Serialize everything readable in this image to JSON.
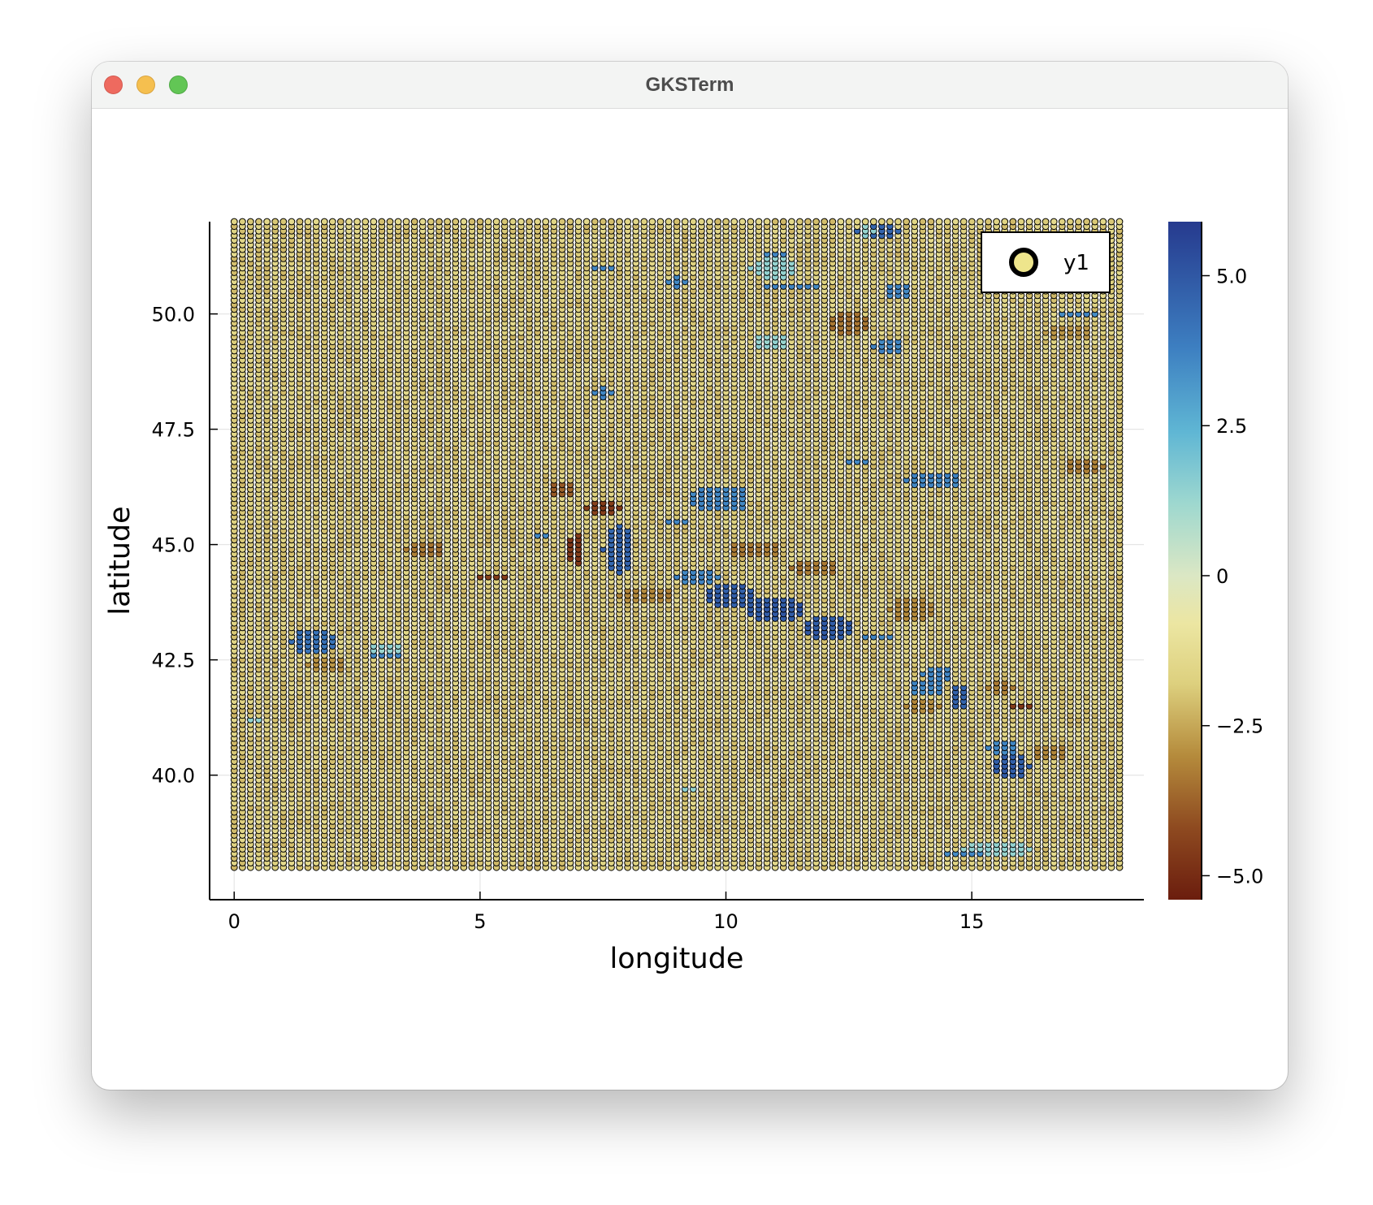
{
  "window": {
    "title": "GKSTerm"
  },
  "chart_data": {
    "type": "scatter",
    "title": "",
    "xlabel": "longitude",
    "ylabel": "latitude",
    "xlim": [
      -0.5,
      18.5
    ],
    "ylim": [
      37.3,
      52.0
    ],
    "grid": true,
    "grid_spacing": {
      "lon": 0.1667,
      "lat": 0.1
    },
    "extent": {
      "lon": [
        0.0,
        18.0
      ],
      "lat": [
        38.0,
        52.0
      ]
    },
    "background_value": -1.8,
    "xticks": [
      {
        "value": 0,
        "label": "0"
      },
      {
        "value": 5,
        "label": "5"
      },
      {
        "value": 10,
        "label": "10"
      },
      {
        "value": 15,
        "label": "15"
      }
    ],
    "yticks": [
      {
        "value": 40.0,
        "label": "40.0"
      },
      {
        "value": 42.5,
        "label": "42.5"
      },
      {
        "value": 45.0,
        "label": "45.0"
      },
      {
        "value": 47.5,
        "label": "47.5"
      },
      {
        "value": 50.0,
        "label": "50.0"
      }
    ],
    "legend": {
      "position": "top-right",
      "entries": [
        {
          "label": "y1",
          "color": "#eee58c"
        }
      ]
    },
    "colorbar": {
      "range": [
        -5.4,
        5.9
      ],
      "ticks": [
        {
          "value": 5.0,
          "label": "5.0"
        },
        {
          "value": 2.5,
          "label": "2.5"
        },
        {
          "value": 0,
          "label": "0"
        },
        {
          "value": -2.5,
          "label": "−2.5"
        },
        {
          "value": -5.0,
          "label": "−5.0"
        }
      ],
      "stops": [
        {
          "value": -5.4,
          "color": "#6b1d0e"
        },
        {
          "value": -4.2,
          "color": "#8e4a20"
        },
        {
          "value": -3.0,
          "color": "#b58b3c"
        },
        {
          "value": -1.8,
          "color": "#ddd07e"
        },
        {
          "value": -0.8,
          "color": "#ece6a2"
        },
        {
          "value": 0.0,
          "color": "#dbe7c4"
        },
        {
          "value": 1.2,
          "color": "#9ed8cf"
        },
        {
          "value": 2.4,
          "color": "#5fb6d4"
        },
        {
          "value": 3.8,
          "color": "#3d7fc1"
        },
        {
          "value": 5.9,
          "color": "#263a8e"
        }
      ]
    },
    "anomaly_patches": [
      {
        "lon": 13.1,
        "lat": 51.8,
        "dlon": 0.45,
        "dlat": 0.15,
        "value": 4.6
      },
      {
        "lon": 12.9,
        "lat": 51.8,
        "dlon": 0.15,
        "dlat": 0.12,
        "value": 1.4
      },
      {
        "lon": 7.5,
        "lat": 51.0,
        "dlon": 0.3,
        "dlat": 0.1,
        "value": 3.6
      },
      {
        "lon": 9.0,
        "lat": 50.7,
        "dlon": 0.2,
        "dlat": 0.15,
        "value": 3.6
      },
      {
        "lon": 11.0,
        "lat": 51.0,
        "dlon": 0.5,
        "dlat": 0.25,
        "value": 1.4
      },
      {
        "lon": 11.4,
        "lat": 50.6,
        "dlon": 0.6,
        "dlat": 0.1,
        "value": 3.6
      },
      {
        "lon": 11.0,
        "lat": 51.3,
        "dlon": 0.3,
        "dlat": 0.1,
        "value": 3.6
      },
      {
        "lon": 13.5,
        "lat": 50.5,
        "dlon": 0.3,
        "dlat": 0.2,
        "value": 3.6
      },
      {
        "lon": 12.5,
        "lat": 49.8,
        "dlon": 0.4,
        "dlat": 0.3,
        "value": -3.4
      },
      {
        "lon": 13.3,
        "lat": 49.3,
        "dlon": 0.35,
        "dlat": 0.15,
        "value": 3.6
      },
      {
        "lon": 10.9,
        "lat": 49.4,
        "dlon": 0.35,
        "dlat": 0.2,
        "value": 1.4
      },
      {
        "lon": 17.2,
        "lat": 50.0,
        "dlon": 0.4,
        "dlat": 0.1,
        "value": 3.6
      },
      {
        "lon": 17.0,
        "lat": 49.6,
        "dlon": 0.5,
        "dlat": 0.2,
        "value": -2.8
      },
      {
        "lon": 7.5,
        "lat": 48.3,
        "dlon": 0.2,
        "dlat": 0.15,
        "value": 3.6
      },
      {
        "lon": 12.7,
        "lat": 46.8,
        "dlon": 0.3,
        "dlat": 0.1,
        "value": 3.6
      },
      {
        "lon": 14.2,
        "lat": 46.4,
        "dlon": 0.6,
        "dlat": 0.2,
        "value": 3.6
      },
      {
        "lon": 17.3,
        "lat": 46.7,
        "dlon": 0.4,
        "dlat": 0.2,
        "value": -3.2
      },
      {
        "lon": 6.7,
        "lat": 46.2,
        "dlon": 0.3,
        "dlat": 0.2,
        "value": -3.8
      },
      {
        "lon": 7.5,
        "lat": 45.8,
        "dlon": 0.35,
        "dlat": 0.15,
        "value": -4.5
      },
      {
        "lon": 9.9,
        "lat": 46.0,
        "dlon": 0.6,
        "dlat": 0.3,
        "value": 3.6
      },
      {
        "lon": 9.0,
        "lat": 45.5,
        "dlon": 0.3,
        "dlat": 0.1,
        "value": 3.6
      },
      {
        "lon": 7.8,
        "lat": 44.9,
        "dlon": 0.3,
        "dlat": 0.55,
        "value": 4.6
      },
      {
        "lon": 6.95,
        "lat": 44.9,
        "dlon": 0.2,
        "dlat": 0.35,
        "value": -4.6
      },
      {
        "lon": 6.2,
        "lat": 45.2,
        "dlon": 0.15,
        "dlat": 0.1,
        "value": 3.6
      },
      {
        "lon": 3.9,
        "lat": 44.9,
        "dlon": 0.4,
        "dlat": 0.2,
        "value": -3.3
      },
      {
        "lon": 10.6,
        "lat": 44.9,
        "dlon": 0.5,
        "dlat": 0.2,
        "value": -3.3
      },
      {
        "lon": 11.8,
        "lat": 44.5,
        "dlon": 0.5,
        "dlat": 0.2,
        "value": -3.3
      },
      {
        "lon": 5.3,
        "lat": 44.3,
        "dlon": 0.35,
        "dlat": 0.1,
        "value": -4.5
      },
      {
        "lon": 8.4,
        "lat": 43.9,
        "dlon": 0.6,
        "dlat": 0.15,
        "value": -3.0
      },
      {
        "lon": 9.4,
        "lat": 44.3,
        "dlon": 0.5,
        "dlat": 0.15,
        "value": 3.6
      },
      {
        "lon": 10.1,
        "lat": 43.9,
        "dlon": 0.5,
        "dlat": 0.25,
        "value": 4.8
      },
      {
        "lon": 11.0,
        "lat": 43.6,
        "dlon": 0.6,
        "dlat": 0.25,
        "value": 4.9
      },
      {
        "lon": 12.1,
        "lat": 43.2,
        "dlon": 0.5,
        "dlat": 0.3,
        "value": 4.9
      },
      {
        "lon": 13.1,
        "lat": 43.0,
        "dlon": 0.4,
        "dlat": 0.1,
        "value": 3.6
      },
      {
        "lon": 13.8,
        "lat": 43.6,
        "dlon": 0.5,
        "dlat": 0.25,
        "value": -3.0
      },
      {
        "lon": 1.6,
        "lat": 42.9,
        "dlon": 0.45,
        "dlat": 0.3,
        "value": 4.2
      },
      {
        "lon": 1.9,
        "lat": 42.4,
        "dlon": 0.4,
        "dlat": 0.15,
        "value": -2.9
      },
      {
        "lon": 3.1,
        "lat": 42.7,
        "dlon": 0.4,
        "dlat": 0.15,
        "value": 1.4
      },
      {
        "lon": 3.1,
        "lat": 42.6,
        "dlon": 0.3,
        "dlat": 0.08,
        "value": 3.6
      },
      {
        "lon": 14.3,
        "lat": 42.2,
        "dlon": 0.3,
        "dlat": 0.2,
        "value": 3.6
      },
      {
        "lon": 14.1,
        "lat": 41.9,
        "dlon": 0.4,
        "dlat": 0.15,
        "value": 3.6
      },
      {
        "lon": 14.8,
        "lat": 41.7,
        "dlon": 0.2,
        "dlat": 0.3,
        "value": 4.6
      },
      {
        "lon": 14.0,
        "lat": 41.5,
        "dlon": 0.4,
        "dlat": 0.15,
        "value": -3.0
      },
      {
        "lon": 16.0,
        "lat": 41.5,
        "dlon": 0.3,
        "dlat": 0.1,
        "value": -4.6
      },
      {
        "lon": 15.6,
        "lat": 41.9,
        "dlon": 0.3,
        "dlat": 0.12,
        "value": -3.2
      },
      {
        "lon": 15.8,
        "lat": 40.2,
        "dlon": 0.4,
        "dlat": 0.25,
        "value": 4.8
      },
      {
        "lon": 15.6,
        "lat": 40.6,
        "dlon": 0.3,
        "dlat": 0.2,
        "value": 3.6
      },
      {
        "lon": 16.6,
        "lat": 40.5,
        "dlon": 0.4,
        "dlat": 0.2,
        "value": -3.0
      },
      {
        "lon": 15.5,
        "lat": 38.4,
        "dlon": 0.7,
        "dlat": 0.2,
        "value": 1.4
      },
      {
        "lon": 14.9,
        "lat": 38.3,
        "dlon": 0.4,
        "dlat": 0.1,
        "value": 3.6
      },
      {
        "lon": 0.4,
        "lat": 41.2,
        "dlon": 0.15,
        "dlat": 0.08,
        "value": 1.4
      },
      {
        "lon": 9.3,
        "lat": 39.7,
        "dlon": 0.15,
        "dlat": 0.08,
        "value": 1.4
      }
    ]
  }
}
